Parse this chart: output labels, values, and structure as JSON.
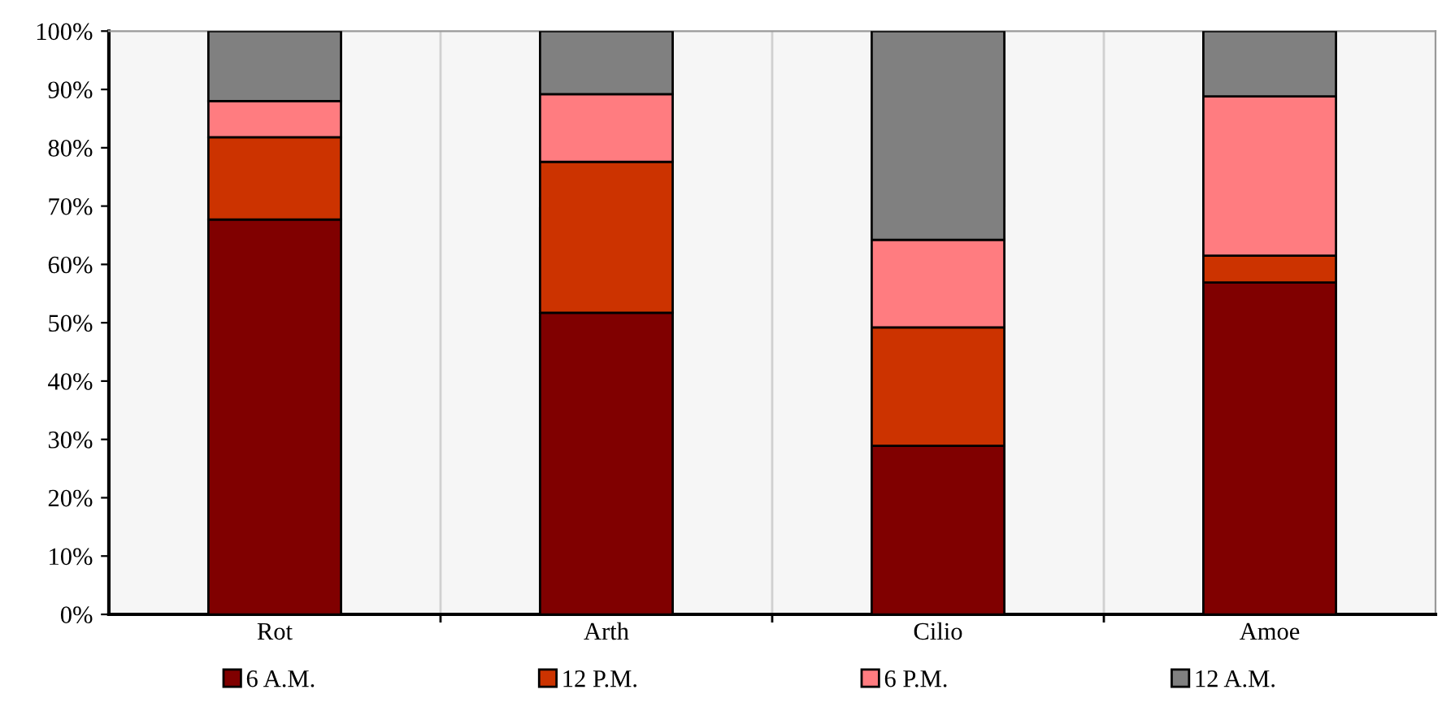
{
  "chart_data": {
    "type": "bar",
    "stacked": true,
    "categories": [
      "Rot",
      "Arth",
      "Cilio",
      "Amoe"
    ],
    "series": [
      {
        "name": "6 A.M.",
        "color": "#800000",
        "values": [
          67.7,
          51.7,
          28.9,
          56.9
        ]
      },
      {
        "name": "12 P.M.",
        "color": "#cc3300",
        "values": [
          14.1,
          25.9,
          20.3,
          4.6
        ]
      },
      {
        "name": "6 P.M.",
        "color": "#ff7c80",
        "values": [
          6.2,
          11.6,
          15.0,
          27.3
        ]
      },
      {
        "name": "12 A.M.",
        "color": "#808080",
        "values": [
          12.0,
          10.8,
          35.8,
          11.2
        ]
      }
    ],
    "ylim": [
      0,
      100
    ],
    "yticks": [
      {
        "value": 0,
        "label": "0%"
      },
      {
        "value": 10,
        "label": "10%"
      },
      {
        "value": 20,
        "label": "20%"
      },
      {
        "value": 30,
        "label": "30%"
      },
      {
        "value": 40,
        "label": "40%"
      },
      {
        "value": 50,
        "label": "50%"
      },
      {
        "value": 60,
        "label": "60%"
      },
      {
        "value": 70,
        "label": "70%"
      },
      {
        "value": 80,
        "label": "80%"
      },
      {
        "value": 90,
        "label": "90%"
      },
      {
        "value": 100,
        "label": "100%"
      }
    ],
    "grid": "x",
    "legend": "bottom"
  }
}
